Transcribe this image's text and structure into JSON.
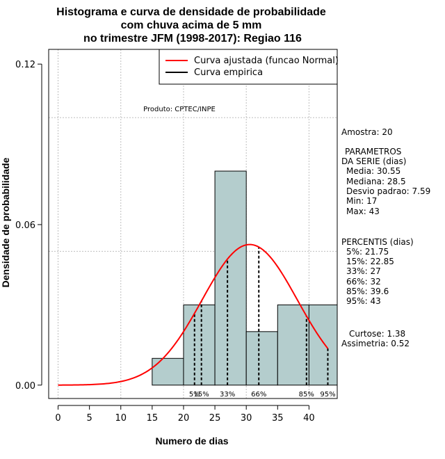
{
  "chart_data": {
    "type": "bar",
    "title_lines": [
      "Histograma e curva de densidade de probabilidade",
      "com chuva acima de 5 mm",
      "no trimestre JFM (1998-2017): Regiao 116"
    ],
    "xlabel": "Numero de dias",
    "ylabel": "Densidade de probabilidade",
    "xlim": [
      -1.5,
      44.5
    ],
    "ylim": [
      -0.005,
      0.1255
    ],
    "x_ticks": [
      0,
      5,
      10,
      15,
      20,
      25,
      30,
      35,
      40
    ],
    "x_tick_labels": [
      "0",
      "5",
      "10",
      "15",
      "20",
      "25",
      "30",
      "35",
      "40"
    ],
    "y_ticks": [
      0.0,
      0.06,
      0.12
    ],
    "y_tick_labels": [
      "0.00",
      "0.06",
      "0.12"
    ],
    "grid_x": [
      0,
      10,
      20,
      30,
      40
    ],
    "grid_y": [
      0.05,
      0.1
    ],
    "bins": [
      {
        "start": 15,
        "end": 20,
        "density": 0.01
      },
      {
        "start": 20,
        "end": 25,
        "density": 0.03
      },
      {
        "start": 25,
        "end": 30,
        "density": 0.08
      },
      {
        "start": 30,
        "end": 35,
        "density": 0.02
      },
      {
        "start": 35,
        "end": 40,
        "density": 0.03
      },
      {
        "start": 40,
        "end": 45,
        "density": 0.03
      }
    ],
    "bar_color": "#b4cdcd",
    "curve_color": "#ff0000",
    "normal_curve": {
      "mean": 30.55,
      "sd": 7.59,
      "x_start": 0,
      "x_end": 43
    },
    "percentiles": [
      {
        "label": "5%",
        "value": 21.75
      },
      {
        "label": "15%",
        "value": 22.85
      },
      {
        "label": "33%",
        "value": 27
      },
      {
        "label": "66%",
        "value": 32
      },
      {
        "label": "85%",
        "value": 39.6
      },
      {
        "label": "95%",
        "value": 43
      }
    ],
    "legend": {
      "position": "top-right",
      "entries": [
        {
          "label": "Curva ajustada (funcao Normal)",
          "color": "#ff0000"
        },
        {
          "label": "Curva empirica",
          "color": "#000000"
        }
      ]
    },
    "product_label": "Produto: CPTEC/INPE"
  },
  "side_panel": {
    "sample": "Amostra: 20",
    "params_header": "PARAMETROS",
    "params_subheader": "DA SERIE (dias)",
    "params": [
      "Media: 30.55",
      "Mediana: 28.5",
      "Desvio padrao: 7.59",
      "Min: 17",
      "Max: 43"
    ],
    "percentis_header": "PERCENTIS (dias)",
    "percentis": [
      "5%: 21.75",
      "15%: 22.85",
      "33%: 27",
      "66%: 32",
      "85%: 39.6",
      "95%: 43"
    ],
    "curtose": "Curtose: 1.38",
    "assimetria": "Assimetria: 0.52"
  }
}
